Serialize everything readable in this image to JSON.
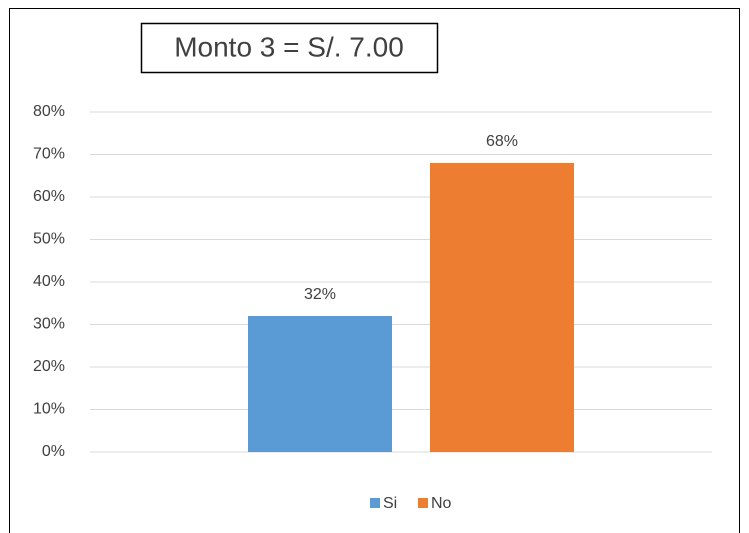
{
  "chart_data": {
    "type": "bar",
    "title": "Monto 3 = S/. 7.00",
    "categories": [
      null
    ],
    "series": [
      {
        "name": "Si",
        "color": "#5b9bd5",
        "values": [
          32
        ],
        "value_labels": [
          "32%"
        ]
      },
      {
        "name": "No",
        "color": "#ed7d31",
        "values": [
          68
        ],
        "value_labels": [
          "68%"
        ]
      }
    ],
    "ylim": [
      0,
      80
    ],
    "yticks": [
      {
        "value": 0,
        "label": "0%"
      },
      {
        "value": 10,
        "label": "10%"
      },
      {
        "value": 20,
        "label": "20%"
      },
      {
        "value": 30,
        "label": "30%"
      },
      {
        "value": 40,
        "label": "40%"
      },
      {
        "value": 50,
        "label": "50%"
      },
      {
        "value": 60,
        "label": "60%"
      },
      {
        "value": 70,
        "label": "70%"
      },
      {
        "value": 80,
        "label": "80%"
      }
    ],
    "grid": true,
    "legend": "bottom"
  }
}
